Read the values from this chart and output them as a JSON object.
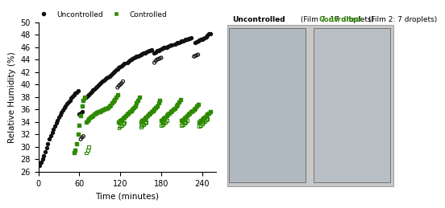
{
  "title": "",
  "xlabel": "Time (minutes)",
  "ylabel": "Relative Humidity (%)",
  "ylim": [
    26,
    50
  ],
  "xlim": [
    0,
    260
  ],
  "yticks": [
    26,
    28,
    30,
    32,
    34,
    36,
    38,
    40,
    42,
    44,
    46,
    48,
    50
  ],
  "xticks": [
    0,
    60,
    120,
    180,
    240
  ],
  "legend_labels": [
    "Uncontrolled",
    "Controlled"
  ],
  "uncontrolled_color": "#111111",
  "controlled_color": "#2e8b00",
  "panel_title_uncontrolled": "Uncontrolled",
  "panel_title_film_uncontrolled": "(Film 7: 17 droplets)",
  "panel_title_controlled": "Controlled",
  "panel_title_film_controlled": "(Film 2: 7 droplets)",
  "uncontrolled_filled": [
    [
      2,
      27.0
    ],
    [
      4,
      27.5
    ],
    [
      6,
      28.0
    ],
    [
      8,
      28.5
    ],
    [
      10,
      29.2
    ],
    [
      12,
      29.8
    ],
    [
      14,
      30.5
    ],
    [
      16,
      31.2
    ],
    [
      18,
      31.8
    ],
    [
      20,
      32.3
    ],
    [
      22,
      32.8
    ],
    [
      24,
      33.3
    ],
    [
      26,
      33.8
    ],
    [
      28,
      34.2
    ],
    [
      30,
      34.7
    ],
    [
      32,
      35.1
    ],
    [
      34,
      35.5
    ],
    [
      36,
      35.9
    ],
    [
      38,
      36.3
    ],
    [
      40,
      36.6
    ],
    [
      42,
      36.9
    ],
    [
      44,
      37.2
    ],
    [
      46,
      37.5
    ],
    [
      48,
      37.8
    ],
    [
      50,
      38.1
    ],
    [
      52,
      38.4
    ],
    [
      54,
      38.6
    ],
    [
      56,
      38.8
    ],
    [
      58,
      39.0
    ],
    [
      60,
      35.2
    ],
    [
      62,
      35.4
    ],
    [
      64,
      35.6
    ],
    [
      66,
      37.5
    ],
    [
      68,
      37.8
    ],
    [
      70,
      38.0
    ],
    [
      72,
      38.2
    ],
    [
      74,
      38.4
    ],
    [
      76,
      38.6
    ],
    [
      78,
      38.9
    ],
    [
      80,
      39.1
    ],
    [
      82,
      39.3
    ],
    [
      84,
      39.5
    ],
    [
      86,
      39.7
    ],
    [
      88,
      39.9
    ],
    [
      90,
      40.1
    ],
    [
      92,
      40.3
    ],
    [
      94,
      40.5
    ],
    [
      96,
      40.7
    ],
    [
      98,
      40.9
    ],
    [
      100,
      41.0
    ],
    [
      102,
      41.2
    ],
    [
      104,
      41.3
    ],
    [
      106,
      41.5
    ],
    [
      108,
      41.7
    ],
    [
      110,
      41.9
    ],
    [
      112,
      42.1
    ],
    [
      114,
      42.3
    ],
    [
      116,
      42.5
    ],
    [
      118,
      42.7
    ],
    [
      120,
      42.9
    ],
    [
      122,
      43.0
    ],
    [
      124,
      43.2
    ],
    [
      126,
      43.4
    ],
    [
      130,
      43.5
    ],
    [
      132,
      43.7
    ],
    [
      134,
      43.9
    ],
    [
      136,
      44.0
    ],
    [
      138,
      44.2
    ],
    [
      140,
      44.3
    ],
    [
      142,
      44.4
    ],
    [
      144,
      44.5
    ],
    [
      146,
      44.6
    ],
    [
      148,
      44.7
    ],
    [
      150,
      44.8
    ],
    [
      152,
      44.9
    ],
    [
      154,
      45.0
    ],
    [
      156,
      45.1
    ],
    [
      158,
      45.2
    ],
    [
      160,
      45.3
    ],
    [
      162,
      45.4
    ],
    [
      164,
      45.5
    ],
    [
      166,
      45.6
    ],
    [
      170,
      45.0
    ],
    [
      172,
      45.2
    ],
    [
      174,
      45.4
    ],
    [
      176,
      45.5
    ],
    [
      178,
      45.6
    ],
    [
      180,
      45.7
    ],
    [
      182,
      45.8
    ],
    [
      184,
      45.9
    ],
    [
      186,
      46.0
    ],
    [
      188,
      46.0
    ],
    [
      190,
      46.1
    ],
    [
      192,
      46.2
    ],
    [
      194,
      46.3
    ],
    [
      196,
      46.4
    ],
    [
      200,
      46.5
    ],
    [
      202,
      46.6
    ],
    [
      204,
      46.7
    ],
    [
      206,
      46.8
    ],
    [
      208,
      46.9
    ],
    [
      210,
      47.0
    ],
    [
      212,
      47.0
    ],
    [
      214,
      47.1
    ],
    [
      216,
      47.2
    ],
    [
      218,
      47.3
    ],
    [
      220,
      47.4
    ],
    [
      222,
      47.4
    ],
    [
      224,
      47.5
    ],
    [
      230,
      46.8
    ],
    [
      232,
      46.9
    ],
    [
      234,
      47.0
    ],
    [
      236,
      47.1
    ],
    [
      238,
      47.2
    ],
    [
      240,
      47.3
    ],
    [
      242,
      47.4
    ],
    [
      244,
      47.5
    ],
    [
      246,
      47.7
    ],
    [
      248,
      47.9
    ],
    [
      250,
      48.1
    ],
    [
      252,
      48.2
    ]
  ],
  "uncontrolled_open": [
    [
      62,
      31.2
    ],
    [
      64,
      31.5
    ],
    [
      66,
      31.7
    ],
    [
      116,
      39.5
    ],
    [
      118,
      39.8
    ],
    [
      120,
      40.0
    ],
    [
      122,
      40.2
    ],
    [
      124,
      40.5
    ],
    [
      170,
      43.5
    ],
    [
      172,
      43.8
    ],
    [
      174,
      44.0
    ],
    [
      176,
      44.1
    ],
    [
      178,
      44.2
    ],
    [
      180,
      44.3
    ],
    [
      228,
      44.5
    ],
    [
      230,
      44.6
    ],
    [
      232,
      44.7
    ],
    [
      234,
      44.8
    ]
  ],
  "controlled_filled": [
    [
      52,
      29.0
    ],
    [
      54,
      29.5
    ],
    [
      56,
      30.5
    ],
    [
      58,
      32.0
    ],
    [
      60,
      33.5
    ],
    [
      62,
      35.0
    ],
    [
      64,
      36.5
    ],
    [
      66,
      37.5
    ],
    [
      68,
      38.0
    ],
    [
      70,
      34.0
    ],
    [
      72,
      34.2
    ],
    [
      74,
      34.5
    ],
    [
      76,
      34.7
    ],
    [
      78,
      34.9
    ],
    [
      80,
      35.0
    ],
    [
      82,
      35.2
    ],
    [
      84,
      35.4
    ],
    [
      86,
      35.5
    ],
    [
      88,
      35.6
    ],
    [
      90,
      35.7
    ],
    [
      92,
      35.8
    ],
    [
      94,
      35.9
    ],
    [
      96,
      36.0
    ],
    [
      98,
      36.1
    ],
    [
      100,
      36.2
    ],
    [
      102,
      36.3
    ],
    [
      104,
      36.5
    ],
    [
      106,
      36.7
    ],
    [
      108,
      37.0
    ],
    [
      110,
      37.3
    ],
    [
      112,
      37.6
    ],
    [
      114,
      38.0
    ],
    [
      116,
      38.4
    ],
    [
      118,
      34.0
    ],
    [
      120,
      34.2
    ],
    [
      122,
      34.4
    ],
    [
      124,
      34.6
    ],
    [
      126,
      34.8
    ],
    [
      128,
      35.0
    ],
    [
      130,
      35.2
    ],
    [
      132,
      35.4
    ],
    [
      134,
      35.6
    ],
    [
      136,
      35.8
    ],
    [
      138,
      36.0
    ],
    [
      140,
      36.3
    ],
    [
      142,
      36.6
    ],
    [
      144,
      37.0
    ],
    [
      146,
      37.5
    ],
    [
      148,
      37.9
    ],
    [
      150,
      34.0
    ],
    [
      152,
      34.2
    ],
    [
      154,
      34.4
    ],
    [
      156,
      34.6
    ],
    [
      158,
      34.8
    ],
    [
      160,
      35.0
    ],
    [
      162,
      35.2
    ],
    [
      164,
      35.4
    ],
    [
      166,
      35.6
    ],
    [
      168,
      35.8
    ],
    [
      170,
      36.0
    ],
    [
      172,
      36.3
    ],
    [
      174,
      36.6
    ],
    [
      176,
      37.0
    ],
    [
      178,
      37.5
    ],
    [
      180,
      34.2
    ],
    [
      182,
      34.4
    ],
    [
      184,
      34.6
    ],
    [
      186,
      34.8
    ],
    [
      188,
      35.0
    ],
    [
      190,
      35.2
    ],
    [
      192,
      35.4
    ],
    [
      194,
      35.6
    ],
    [
      196,
      35.8
    ],
    [
      198,
      36.0
    ],
    [
      200,
      36.2
    ],
    [
      202,
      36.5
    ],
    [
      204,
      36.8
    ],
    [
      206,
      37.2
    ],
    [
      208,
      37.6
    ],
    [
      210,
      34.2
    ],
    [
      212,
      34.4
    ],
    [
      214,
      34.6
    ],
    [
      216,
      34.8
    ],
    [
      218,
      35.0
    ],
    [
      220,
      35.2
    ],
    [
      222,
      35.4
    ],
    [
      224,
      35.6
    ],
    [
      226,
      35.8
    ],
    [
      228,
      36.0
    ],
    [
      230,
      36.2
    ],
    [
      232,
      36.5
    ],
    [
      234,
      36.8
    ],
    [
      236,
      34.0
    ],
    [
      238,
      34.2
    ],
    [
      240,
      34.4
    ],
    [
      242,
      34.6
    ],
    [
      244,
      34.8
    ],
    [
      246,
      35.0
    ],
    [
      248,
      35.2
    ],
    [
      250,
      35.4
    ],
    [
      252,
      35.6
    ]
  ],
  "controlled_open": [
    [
      70,
      29.0
    ],
    [
      72,
      29.5
    ],
    [
      74,
      30.0
    ],
    [
      118,
      33.0
    ],
    [
      120,
      33.3
    ],
    [
      122,
      33.5
    ],
    [
      124,
      33.7
    ],
    [
      126,
      33.9
    ],
    [
      150,
      33.2
    ],
    [
      152,
      33.4
    ],
    [
      154,
      33.6
    ],
    [
      156,
      33.8
    ],
    [
      158,
      34.0
    ],
    [
      180,
      33.4
    ],
    [
      182,
      33.6
    ],
    [
      184,
      33.8
    ],
    [
      186,
      34.0
    ],
    [
      188,
      34.2
    ],
    [
      210,
      33.4
    ],
    [
      212,
      33.6
    ],
    [
      214,
      33.8
    ],
    [
      216,
      34.0
    ],
    [
      218,
      34.2
    ],
    [
      236,
      33.3
    ],
    [
      238,
      33.5
    ],
    [
      240,
      33.7
    ],
    [
      242,
      33.9
    ],
    [
      244,
      34.1
    ],
    [
      246,
      34.3
    ],
    [
      248,
      34.5
    ]
  ]
}
